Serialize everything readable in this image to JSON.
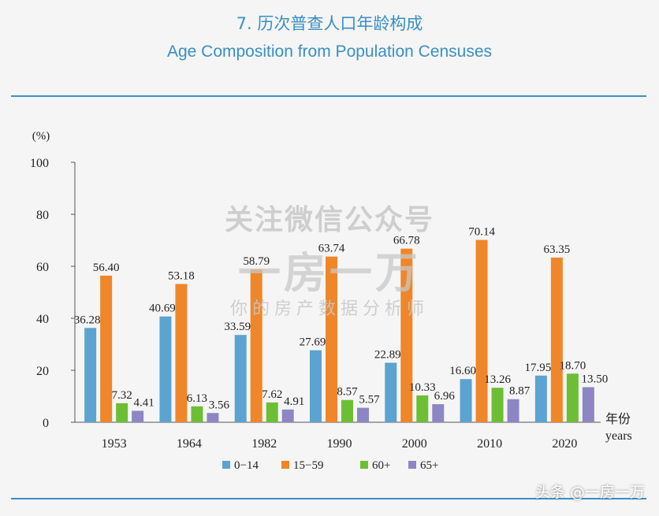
{
  "header": {
    "title_cn": "7. 历次普查人口年龄构成",
    "title_en": "Age Composition from Population Censuses"
  },
  "watermark": {
    "line1": "关注微信公众号",
    "line2": "一房一万",
    "line3": "你的房产数据分析师"
  },
  "footer": {
    "credit": "头条 @一房一万"
  },
  "chart_data": {
    "type": "bar",
    "ylabel": "(%)",
    "xlabel_cn": "年份",
    "xlabel_en": "years",
    "ylim": [
      0,
      100
    ],
    "yticks": [
      0,
      20,
      40,
      60,
      80,
      100
    ],
    "categories": [
      "1953",
      "1964",
      "1982",
      "1990",
      "2000",
      "2010",
      "2020"
    ],
    "series": [
      {
        "name": "0−14",
        "color": "#5ba3d0",
        "values": [
          36.28,
          40.69,
          33.59,
          27.69,
          22.89,
          16.6,
          17.95
        ]
      },
      {
        "name": "15−59",
        "color": "#f0862a",
        "values": [
          56.4,
          53.18,
          58.79,
          63.74,
          66.78,
          70.14,
          63.35
        ]
      },
      {
        "name": "60+",
        "color": "#6cbf35",
        "values": [
          7.32,
          6.13,
          7.62,
          8.57,
          10.33,
          13.26,
          18.7
        ]
      },
      {
        "name": "65+",
        "color": "#8d86c4",
        "values": [
          4.41,
          3.56,
          4.91,
          5.57,
          6.96,
          8.87,
          13.5
        ]
      }
    ]
  }
}
